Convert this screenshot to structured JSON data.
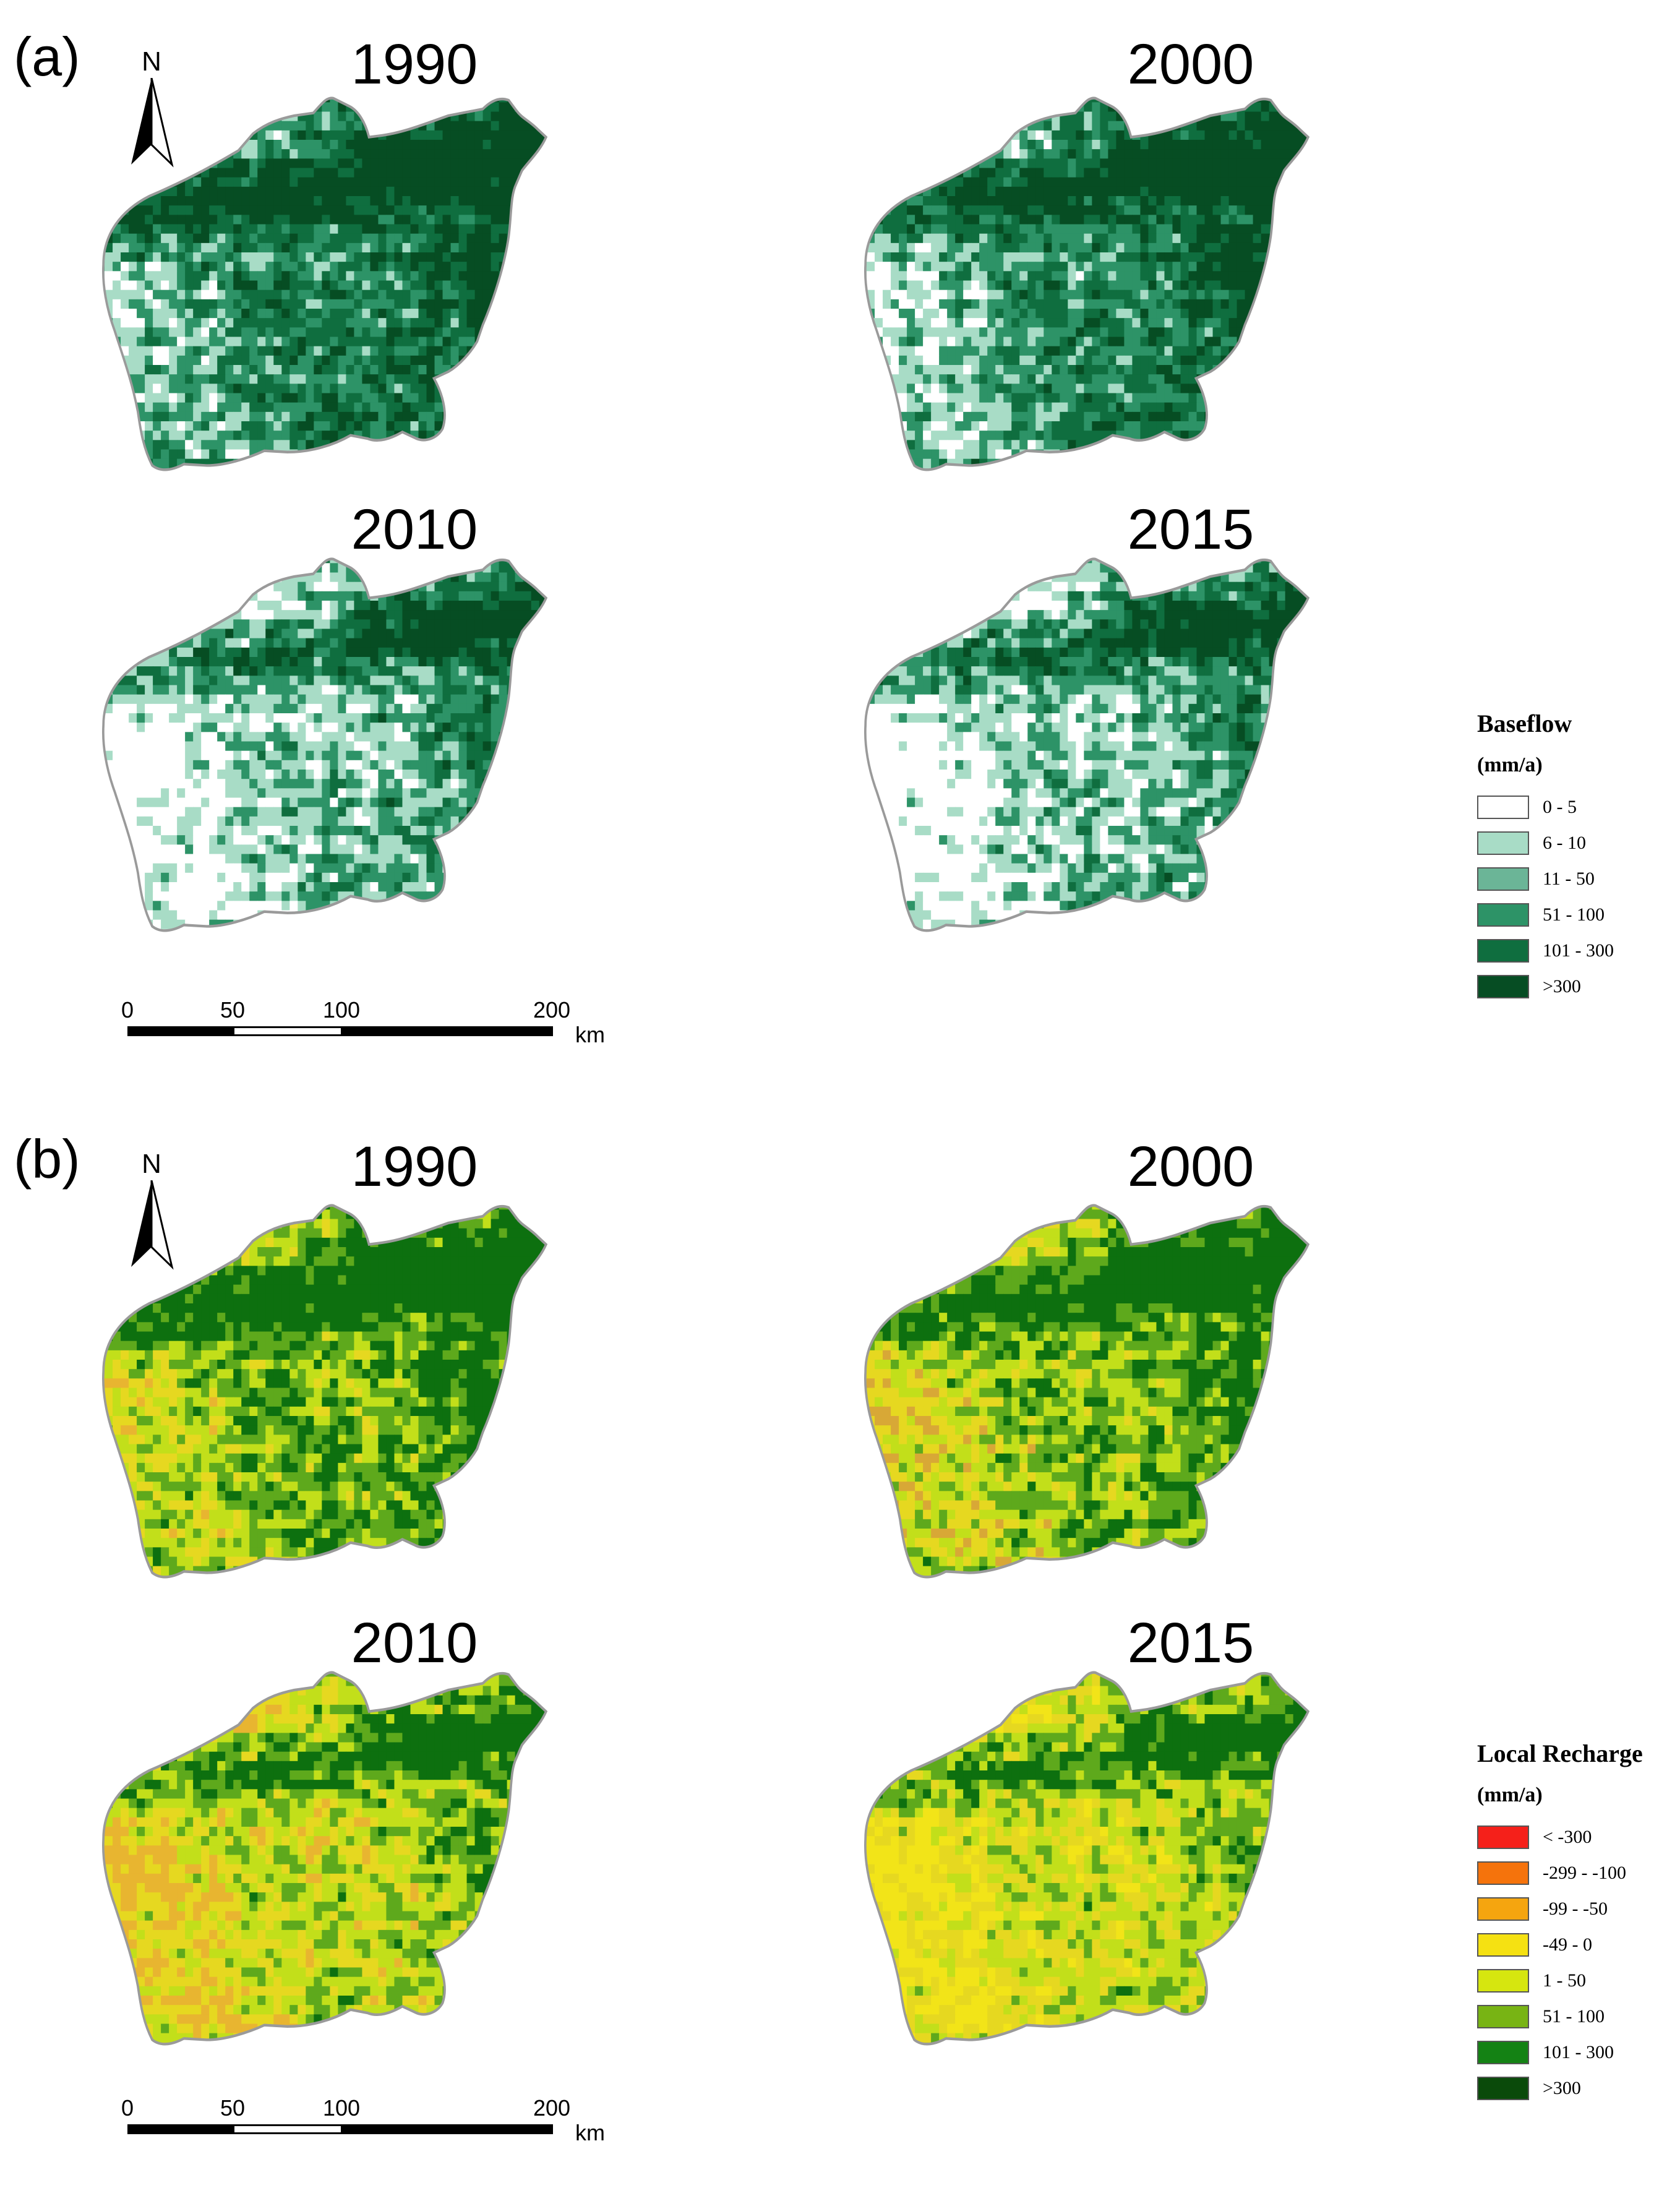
{
  "panel_a": {
    "label": "(a)",
    "north": "N",
    "years": [
      "1990",
      "2000",
      "2010",
      "2015"
    ],
    "legend": {
      "title": "Baseflow",
      "unit": "(mm/a)",
      "items": [
        {
          "label": "0 - 5",
          "color": "#ffffff"
        },
        {
          "label": "6 - 10",
          "color": "#a8dcc6"
        },
        {
          "label": "11 - 50",
          "color": "#6bb597"
        },
        {
          "label": "51 - 100",
          "color": "#2d9367"
        },
        {
          "label": "101 - 300",
          "color": "#0f6e3f"
        },
        {
          "label": ">300",
          "color": "#064d23"
        }
      ]
    },
    "scale": {
      "ticks": [
        "0",
        "50",
        "100",
        "200"
      ],
      "unit": "km"
    },
    "maps": {
      "1990": {
        "ramp": [
          "#ffffff",
          "#a8dcc6",
          "#2d9367",
          "#0f6e3f",
          "#064d23"
        ],
        "west_level": 0.35,
        "east_level": 0.95
      },
      "2000": {
        "ramp": [
          "#ffffff",
          "#a8dcc6",
          "#2d9367",
          "#0f6e3f",
          "#064d23"
        ],
        "west_level": 0.25,
        "east_level": 0.95
      },
      "2010": {
        "ramp": [
          "#ffffff",
          "#a8dcc6",
          "#2d9367",
          "#0f6e3f",
          "#064d23"
        ],
        "west_level": 0.0,
        "east_level": 0.75
      },
      "2015": {
        "ramp": [
          "#ffffff",
          "#a8dcc6",
          "#2d9367",
          "#0f6e3f",
          "#064d23"
        ],
        "west_level": 0.0,
        "east_level": 0.72
      }
    }
  },
  "panel_b": {
    "label": "(b)",
    "north": "N",
    "years": [
      "1990",
      "2000",
      "2010",
      "2015"
    ],
    "legend": {
      "title": "Local Recharge",
      "unit": "(mm/a)",
      "items": [
        {
          "label": "< -300",
          "color": "#f5201a"
        },
        {
          "label": "-299 - -100",
          "color": "#f5730c"
        },
        {
          "label": "-99 - -50",
          "color": "#f5a50f"
        },
        {
          "label": "-49 - 0",
          "color": "#f5e112"
        },
        {
          "label": "1 - 50",
          "color": "#d6e60f"
        },
        {
          "label": "51 - 100",
          "color": "#78b414"
        },
        {
          "label": "101 - 300",
          "color": "#148214"
        },
        {
          "label": ">300",
          "color": "#0a4a0a"
        }
      ]
    },
    "scale": {
      "ticks": [
        "0",
        "50",
        "100",
        "200"
      ],
      "unit": "km"
    },
    "maps": {
      "1990": {
        "ramp": [
          "#e8b530",
          "#e6d820",
          "#c2df1a",
          "#5ea91c",
          "#0d700f"
        ],
        "west_level": 0.45,
        "east_level": 0.95
      },
      "2000": {
        "ramp": [
          "#d8a836",
          "#e6d820",
          "#c2df1a",
          "#5ea91c",
          "#0d700f"
        ],
        "west_level": 0.35,
        "east_level": 0.95
      },
      "2010": {
        "ramp": [
          "#e8b530",
          "#e6d820",
          "#c2df1a",
          "#5ea91c",
          "#0d700f"
        ],
        "west_level": 0.22,
        "east_level": 0.75
      },
      "2015": {
        "ramp": [
          "#f2e418",
          "#e6d820",
          "#c2df1a",
          "#5ea91c",
          "#0d700f"
        ],
        "west_level": 0.18,
        "east_level": 0.72
      }
    }
  }
}
